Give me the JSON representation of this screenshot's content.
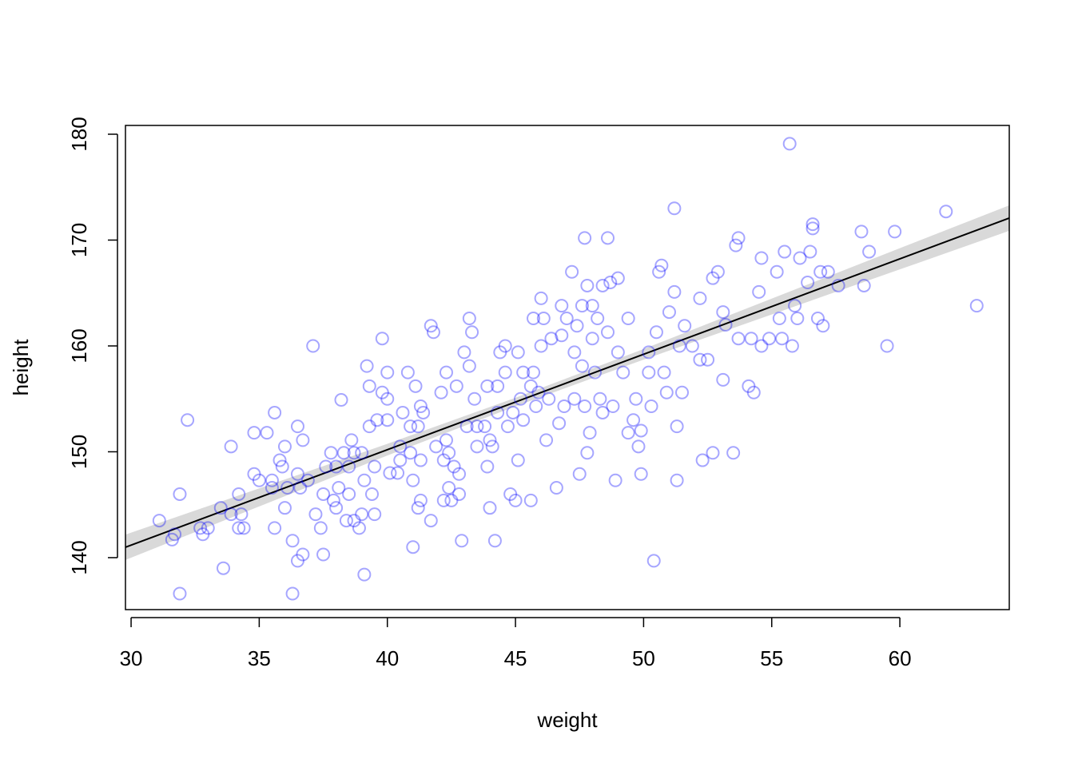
{
  "chart_data": {
    "type": "scatter",
    "x_label": "weight",
    "y_label": "height",
    "xlim": [
      29.78,
      64.27
    ],
    "ylim": [
      135.09,
      180.83
    ],
    "xticks": [
      30,
      35,
      40,
      45,
      50,
      55,
      60
    ],
    "yticks": [
      140,
      150,
      160,
      170,
      180
    ],
    "color": "#0000ff",
    "x": [
      31.1,
      31.6,
      31.7,
      31.9,
      31.9,
      32.2,
      32.7,
      32.8,
      33.0,
      33.5,
      33.6,
      33.9,
      33.9,
      34.2,
      34.2,
      34.3,
      34.4,
      34.8,
      34.8,
      35.0,
      35.3,
      35.5,
      35.6,
      35.5,
      35.6,
      35.8,
      35.9,
      36.0,
      36.0,
      36.1,
      36.3,
      36.3,
      36.5,
      36.5,
      36.5,
      36.6,
      36.7,
      36.7,
      36.9,
      37.1,
      37.2,
      37.4,
      37.5,
      37.5,
      37.6,
      37.8,
      37.9,
      38.0,
      38.0,
      38.1,
      38.2,
      38.3,
      38.4,
      38.5,
      38.5,
      38.6,
      38.7,
      38.7,
      38.9,
      39.0,
      39.0,
      39.1,
      39.1,
      39.2,
      39.3,
      39.3,
      39.4,
      39.5,
      39.5,
      39.6,
      39.8,
      39.8,
      40.0,
      40.0,
      40.0,
      40.1,
      40.4,
      40.5,
      40.5,
      40.6,
      40.8,
      40.9,
      40.9,
      41.0,
      41.0,
      41.1,
      41.2,
      41.2,
      41.3,
      41.3,
      41.3,
      41.4,
      41.7,
      41.7,
      41.8,
      41.9,
      42.1,
      42.2,
      42.2,
      42.3,
      42.3,
      42.4,
      42.4,
      42.5,
      42.6,
      42.7,
      42.8,
      42.8,
      42.9,
      43.0,
      43.1,
      43.2,
      43.2,
      43.3,
      43.4,
      43.5,
      43.5,
      43.8,
      43.9,
      43.9,
      44.0,
      44.0,
      44.1,
      44.2,
      44.3,
      44.3,
      44.4,
      44.6,
      44.6,
      44.7,
      44.8,
      44.9,
      45.0,
      45.1,
      45.1,
      45.2,
      45.3,
      45.3,
      45.6,
      45.6,
      45.7,
      45.7,
      45.8,
      45.9,
      46.0,
      46.0,
      46.1,
      46.2,
      46.3,
      46.4,
      46.6,
      46.7,
      46.8,
      46.8,
      46.9,
      47.0,
      47.2,
      47.3,
      47.3,
      47.4,
      47.5,
      47.6,
      47.6,
      47.7,
      47.7,
      47.8,
      47.8,
      47.9,
      48.0,
      48.0,
      48.1,
      48.2,
      48.3,
      48.4,
      48.4,
      48.6,
      48.6,
      48.7,
      48.8,
      48.9,
      49.0,
      49.0,
      49.2,
      49.4,
      49.4,
      49.6,
      49.7,
      49.8,
      49.9,
      49.9,
      50.2,
      50.2,
      50.3,
      50.4,
      50.5,
      50.6,
      50.7,
      50.8,
      50.9,
      51.0,
      51.2,
      51.2,
      51.3,
      51.3,
      51.4,
      51.5,
      51.6,
      51.9,
      52.2,
      52.2,
      52.3,
      52.5,
      52.7,
      52.7,
      52.9,
      53.1,
      53.1,
      53.2,
      53.5,
      53.6,
      53.7,
      53.7,
      54.1,
      54.2,
      54.3,
      54.5,
      54.6,
      54.6,
      54.9,
      55.2,
      55.3,
      55.4,
      55.5,
      55.7,
      55.8,
      55.9,
      56.1,
      56.0,
      56.4,
      56.5,
      56.6,
      56.6,
      56.8,
      56.9,
      57.0,
      57.2,
      57.6,
      58.5,
      58.6,
      58.8,
      59.5,
      59.8,
      61.8,
      63.0
    ],
    "values": [
      143.5,
      141.7,
      142.2,
      146.0,
      136.6,
      153.0,
      142.8,
      142.2,
      142.8,
      144.7,
      139.0,
      150.5,
      144.1,
      146.0,
      142.8,
      144.1,
      142.8,
      151.8,
      147.9,
      147.3,
      151.8,
      146.6,
      153.7,
      147.3,
      142.8,
      149.2,
      148.6,
      150.5,
      144.7,
      146.6,
      141.6,
      136.6,
      152.4,
      147.9,
      139.7,
      146.6,
      140.3,
      151.1,
      147.3,
      160.0,
      144.1,
      142.8,
      140.3,
      146.0,
      148.6,
      149.9,
      145.4,
      148.6,
      144.7,
      146.6,
      154.9,
      149.9,
      143.5,
      148.6,
      146.0,
      151.1,
      143.5,
      149.9,
      142.8,
      149.9,
      144.1,
      138.4,
      147.3,
      158.1,
      156.2,
      152.4,
      146.0,
      148.6,
      144.1,
      153.0,
      155.6,
      160.7,
      155.0,
      153.0,
      157.5,
      148.0,
      148.0,
      149.2,
      150.5,
      153.7,
      157.5,
      149.9,
      152.4,
      147.3,
      141.0,
      156.2,
      152.4,
      144.7,
      154.3,
      149.2,
      145.4,
      153.7,
      143.5,
      161.9,
      161.3,
      150.5,
      155.6,
      149.2,
      145.4,
      157.5,
      151.1,
      146.6,
      149.9,
      145.4,
      148.6,
      156.2,
      147.9,
      146.0,
      141.6,
      159.4,
      152.4,
      162.6,
      158.1,
      161.3,
      155.0,
      152.4,
      150.5,
      152.4,
      156.2,
      148.6,
      151.1,
      144.7,
      150.5,
      141.6,
      156.2,
      153.7,
      159.4,
      160.0,
      157.5,
      152.4,
      146.0,
      153.7,
      145.4,
      159.4,
      149.2,
      155.0,
      157.5,
      153.0,
      156.2,
      145.4,
      162.6,
      157.5,
      154.3,
      155.6,
      164.5,
      160.0,
      162.6,
      151.1,
      155.0,
      160.7,
      146.6,
      152.7,
      163.8,
      161.0,
      154.3,
      162.6,
      167.0,
      159.4,
      155.0,
      161.9,
      147.9,
      163.8,
      158.1,
      170.2,
      154.3,
      149.9,
      165.7,
      151.8,
      160.7,
      163.8,
      157.5,
      162.6,
      155.0,
      153.7,
      165.7,
      170.2,
      161.3,
      166.0,
      154.3,
      147.3,
      166.4,
      159.4,
      157.5,
      162.6,
      151.8,
      153.0,
      155.0,
      150.5,
      147.9,
      152.0,
      159.4,
      157.5,
      154.3,
      139.7,
      161.3,
      167.0,
      167.6,
      157.5,
      155.6,
      163.2,
      165.1,
      173.0,
      152.4,
      147.3,
      160.0,
      155.6,
      161.9,
      160.0,
      164.5,
      158.7,
      149.2,
      158.7,
      166.4,
      149.9,
      167.0,
      156.8,
      163.2,
      162.0,
      149.9,
      169.5,
      170.2,
      160.7,
      156.2,
      160.7,
      155.6,
      165.1,
      168.3,
      160.0,
      160.7,
      167.0,
      162.6,
      160.7,
      168.9,
      179.1,
      160.0,
      163.8,
      168.3,
      162.6,
      166.0,
      168.9,
      171.5,
      171.1,
      162.6,
      167.0,
      161.9,
      167.0,
      165.7,
      170.8,
      165.7,
      168.9,
      160.0,
      170.8,
      172.7,
      163.8
    ],
    "line": {
      "color": "#000000",
      "x": [
        29.78,
        64.27
      ],
      "values": [
        140.98,
        172.08
      ]
    },
    "band": {
      "color": "#d9d9d9",
      "x": [
        29.78,
        35,
        40,
        45,
        50,
        55,
        60,
        64.27
      ],
      "lower": [
        139.78,
        144.84,
        149.65,
        154.3,
        158.71,
        162.97,
        167.23,
        170.88
      ],
      "upper": [
        142.18,
        146.54,
        150.75,
        155.1,
        159.71,
        164.47,
        169.23,
        173.28
      ]
    }
  }
}
